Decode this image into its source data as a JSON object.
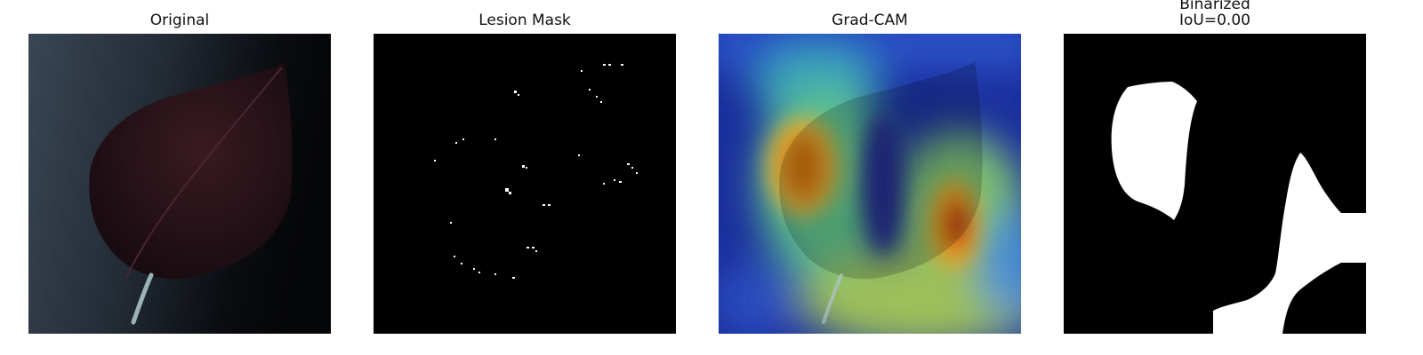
{
  "figure": {
    "panels": [
      {
        "id": "original",
        "title": "Original"
      },
      {
        "id": "lesion-mask",
        "title": "Lesion Mask"
      },
      {
        "id": "grad-cam",
        "title": "Grad-CAM"
      },
      {
        "id": "binarized",
        "title": "Binarized",
        "subtitle": "IoU=0.00"
      }
    ]
  },
  "colors": {
    "background": "#ffffff",
    "mask_background": "#000000",
    "mask_foreground": "#ffffff",
    "cam_low": "#1f3fbf",
    "cam_high": "#c80000"
  }
}
